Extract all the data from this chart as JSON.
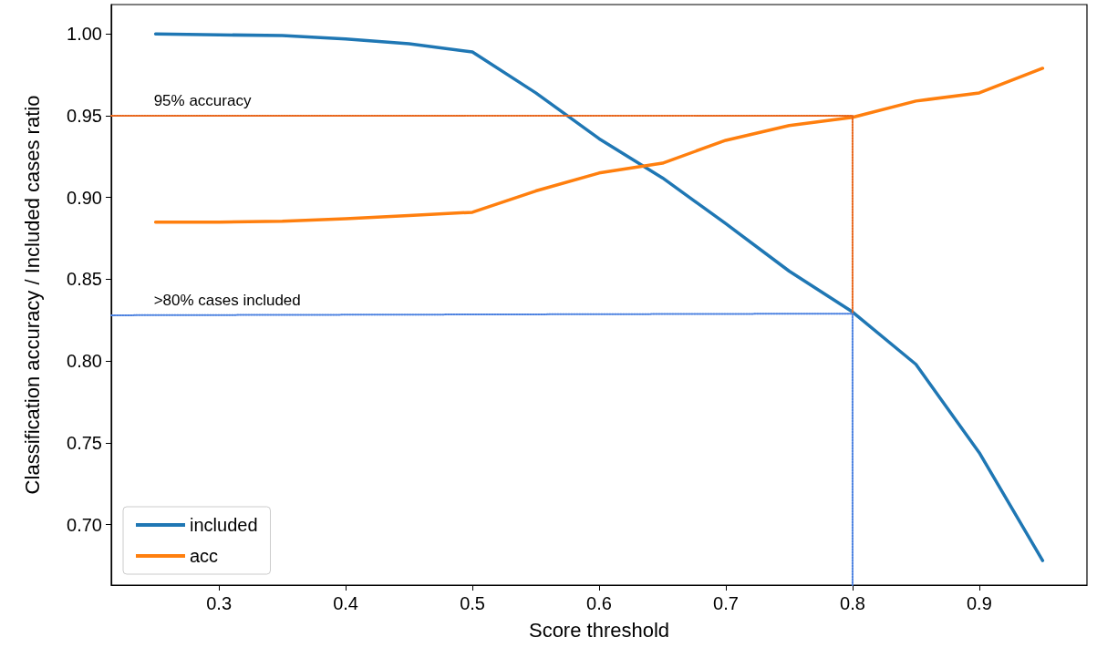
{
  "chart_data": {
    "type": "line",
    "xlabel": "Score threshold",
    "ylabel": "Classification accuracy / Included cases ratio",
    "xlim": [
      0.215,
      0.985
    ],
    "ylim": [
      0.663,
      1.018
    ],
    "xticks": [
      0.3,
      0.4,
      0.5,
      0.6,
      0.7,
      0.8,
      0.9
    ],
    "yticks": [
      {
        "value": 0.7,
        "label": "0.70"
      },
      {
        "value": 0.75,
        "label": "0.75"
      },
      {
        "value": 0.8,
        "label": "0.80"
      },
      {
        "value": 0.85,
        "label": "0.85"
      },
      {
        "value": 0.9,
        "label": "0.90"
      },
      {
        "value": 0.95,
        "label": "0.95"
      },
      {
        "value": 1.0,
        "label": "1.00"
      }
    ],
    "grid": false,
    "legend": "bottom left",
    "marker": "none",
    "line_style": "solid",
    "series": [
      {
        "name": "included",
        "color": "#1f77b4",
        "x": [
          0.25,
          0.3,
          0.35,
          0.4,
          0.45,
          0.5,
          0.55,
          0.6,
          0.65,
          0.7,
          0.75,
          0.8,
          0.85,
          0.9,
          0.95
        ],
        "values": [
          1.0,
          0.9995,
          0.999,
          0.997,
          0.994,
          0.989,
          0.964,
          0.936,
          0.912,
          0.884,
          0.855,
          0.83,
          0.798,
          0.744,
          0.678
        ]
      },
      {
        "name": "acc",
        "color": "#ff7f0e",
        "x": [
          0.25,
          0.3,
          0.35,
          0.4,
          0.45,
          0.5,
          0.55,
          0.6,
          0.65,
          0.7,
          0.75,
          0.8,
          0.85,
          0.9,
          0.95
        ],
        "values": [
          0.885,
          0.885,
          0.8855,
          0.887,
          0.889,
          0.891,
          0.904,
          0.915,
          0.921,
          0.935,
          0.944,
          0.949,
          0.959,
          0.964,
          0.979
        ]
      },
      {
        "color": "#e8651a",
        "line_style": "dotted",
        "x": [
          0.215,
          0.8,
          0.8
        ],
        "values": [
          0.95,
          0.95,
          0.829
        ]
      },
      {
        "color": "#4a80e0",
        "line_style": "dotted",
        "x": [
          0.215,
          0.8,
          0.8
        ],
        "values": [
          0.828,
          0.829,
          0.663
        ]
      }
    ],
    "annotations": [
      {
        "text": "95% accuracy",
        "x": 0.25,
        "y": 0.95
      },
      {
        "text": ">80% cases included",
        "x": 0.25,
        "y": 0.828
      }
    ]
  }
}
